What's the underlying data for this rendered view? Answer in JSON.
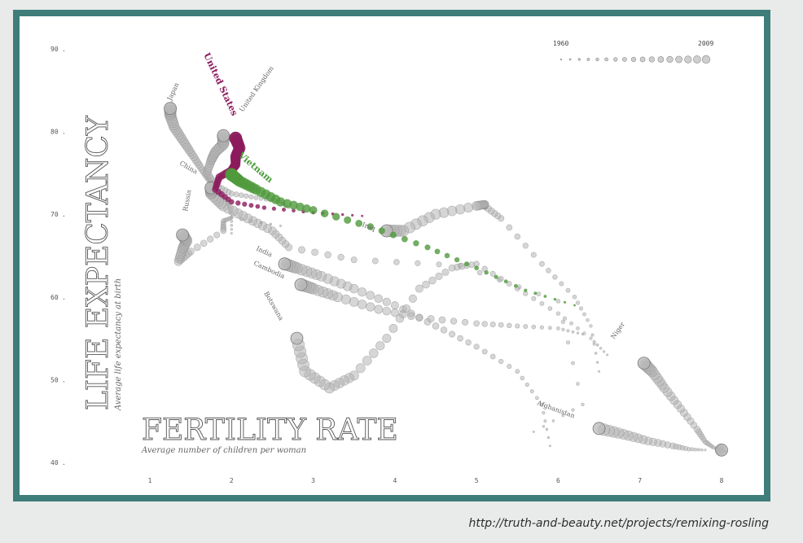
{
  "chart_data": {
    "type": "scatter",
    "title": "",
    "xlabel": "FERTILITY RATE",
    "xsublabel": "Average number of children per woman",
    "ylabel": "LIFE EXPECTANCY",
    "ysublabel": "Average life expectancy at birth",
    "xlim": [
      1,
      8
    ],
    "ylim": [
      40,
      90
    ],
    "xticks": [
      "1",
      "2",
      "3",
      "4",
      "5",
      "6",
      "7",
      "8"
    ],
    "yticks": [
      "40",
      "50",
      "60",
      "70",
      "80",
      "90"
    ],
    "grid": false,
    "legend": {
      "start_year": "1960",
      "end_year": "2009",
      "placement": "top-right"
    },
    "colors": {
      "default": "#b5b5b5",
      "us": "#8c1c5d",
      "vietnam": "#4f9a3c"
    },
    "series": [
      {
        "name": "Japan",
        "highlight": "none",
        "points": [
          [
            2.0,
            67.7
          ],
          [
            2.0,
            70.1
          ],
          [
            1.95,
            71.5
          ],
          [
            1.8,
            73.0
          ],
          [
            1.7,
            74.5
          ],
          [
            1.6,
            76.0
          ],
          [
            1.5,
            77.5
          ],
          [
            1.4,
            79.0
          ],
          [
            1.3,
            80.5
          ],
          [
            1.25,
            82.0
          ],
          [
            1.25,
            82.8
          ]
        ]
      },
      {
        "name": "United Kingdom",
        "highlight": "none",
        "points": [
          [
            2.7,
            70.8
          ],
          [
            2.6,
            71.5
          ],
          [
            2.3,
            72.0
          ],
          [
            2.0,
            72.5
          ],
          [
            1.8,
            73.5
          ],
          [
            1.7,
            75.0
          ],
          [
            1.75,
            76.5
          ],
          [
            1.8,
            77.5
          ],
          [
            1.9,
            78.5
          ],
          [
            1.9,
            79.5
          ]
        ]
      },
      {
        "name": "United States",
        "highlight": "us",
        "points": [
          [
            3.6,
            69.8
          ],
          [
            3.0,
            70.2
          ],
          [
            2.4,
            70.8
          ],
          [
            2.0,
            71.5
          ],
          [
            1.8,
            73.0
          ],
          [
            1.85,
            74.5
          ],
          [
            2.0,
            75.3
          ],
          [
            2.05,
            76.0
          ],
          [
            2.05,
            77.0
          ],
          [
            2.1,
            78.0
          ],
          [
            2.05,
            79.2
          ]
        ]
      },
      {
        "name": "Vietnam",
        "highlight": "vietnam",
        "points": [
          [
            6.2,
            59.0
          ],
          [
            5.6,
            60.8
          ],
          [
            5.0,
            63.5
          ],
          [
            4.4,
            66.0
          ],
          [
            3.7,
            68.5
          ],
          [
            3.0,
            70.5
          ],
          [
            2.6,
            71.5
          ],
          [
            2.3,
            73.0
          ],
          [
            2.1,
            74.0
          ],
          [
            2.0,
            74.8
          ]
        ]
      },
      {
        "name": "China",
        "highlight": "none",
        "points": [
          [
            5.7,
            43.7
          ],
          [
            6.3,
            47.0
          ],
          [
            6.0,
            59.5
          ],
          [
            4.8,
            63.8
          ],
          [
            3.5,
            64.5
          ],
          [
            2.7,
            66.0
          ],
          [
            2.5,
            68.0
          ],
          [
            2.2,
            69.5
          ],
          [
            1.9,
            71.0
          ],
          [
            1.75,
            72.5
          ],
          [
            1.75,
            73.2
          ]
        ]
      },
      {
        "name": "Russia",
        "highlight": "none",
        "points": [
          [
            2.6,
            68.6
          ],
          [
            2.0,
            69.6
          ],
          [
            1.9,
            69.2
          ],
          [
            1.9,
            68.0
          ],
          [
            1.5,
            65.5
          ],
          [
            1.35,
            64.3
          ],
          [
            1.4,
            65.8
          ],
          [
            1.45,
            66.8
          ],
          [
            1.4,
            67.5
          ]
        ]
      },
      {
        "name": "Iraq",
        "highlight": "none",
        "points": [
          [
            6.5,
            51.0
          ],
          [
            6.4,
            56.5
          ],
          [
            6.2,
            60.0
          ],
          [
            5.8,
            64.0
          ],
          [
            5.3,
            69.5
          ],
          [
            5.1,
            71.0
          ],
          [
            5.1,
            71.2
          ],
          [
            5.0,
            71.0
          ],
          [
            4.5,
            70.0
          ],
          [
            4.1,
            68.0
          ],
          [
            3.9,
            68.0
          ]
        ]
      },
      {
        "name": "India",
        "highlight": "none",
        "points": [
          [
            5.9,
            42.0
          ],
          [
            5.8,
            47.0
          ],
          [
            5.5,
            51.0
          ],
          [
            5.0,
            54.0
          ],
          [
            4.5,
            56.5
          ],
          [
            4.0,
            59.0
          ],
          [
            3.5,
            61.0
          ],
          [
            3.1,
            62.5
          ],
          [
            2.8,
            63.5
          ],
          [
            2.65,
            64.0
          ]
        ]
      },
      {
        "name": "Cambodia",
        "highlight": "none",
        "points": [
          [
            6.3,
            55.5
          ],
          [
            6.0,
            56.2
          ],
          [
            5.5,
            56.5
          ],
          [
            5.0,
            56.8
          ],
          [
            4.3,
            57.5
          ],
          [
            3.8,
            58.5
          ],
          [
            3.3,
            60.0
          ],
          [
            3.0,
            61.0
          ],
          [
            2.85,
            61.5
          ]
        ]
      },
      {
        "name": "Botswana",
        "highlight": "none",
        "points": [
          [
            6.6,
            53.0
          ],
          [
            6.4,
            55.0
          ],
          [
            6.0,
            58.0
          ],
          [
            5.5,
            61.0
          ],
          [
            5.0,
            64.0
          ],
          [
            4.7,
            63.5
          ],
          [
            4.3,
            61.0
          ],
          [
            3.9,
            55.0
          ],
          [
            3.5,
            50.5
          ],
          [
            3.2,
            49.0
          ],
          [
            2.9,
            51.0
          ],
          [
            2.8,
            55.0
          ]
        ]
      },
      {
        "name": "Niger",
        "highlight": "none",
        "points": [
          [
            8.05,
            41.3
          ],
          [
            7.9,
            41.8
          ],
          [
            7.8,
            42.5
          ],
          [
            7.7,
            44.0
          ],
          [
            7.5,
            46.5
          ],
          [
            7.3,
            49.0
          ],
          [
            7.15,
            51.0
          ],
          [
            7.05,
            52.0
          ]
        ]
      },
      {
        "name": "Afghanistan",
        "highlight": "none",
        "points": [
          [
            7.8,
            41.5
          ],
          [
            7.6,
            41.6
          ],
          [
            7.4,
            42.0
          ],
          [
            7.1,
            42.6
          ],
          [
            6.8,
            43.4
          ],
          [
            6.5,
            44.1
          ]
        ]
      },
      {
        "name": "Niger",
        "highlight": "none",
        "hidden_label": true,
        "points": [
          [
            7.95,
            41.5
          ],
          [
            8.0,
            41.5
          ]
        ]
      }
    ]
  },
  "footer": {
    "url": "http://truth-and-beauty.net/projects/remixing-rosling"
  }
}
